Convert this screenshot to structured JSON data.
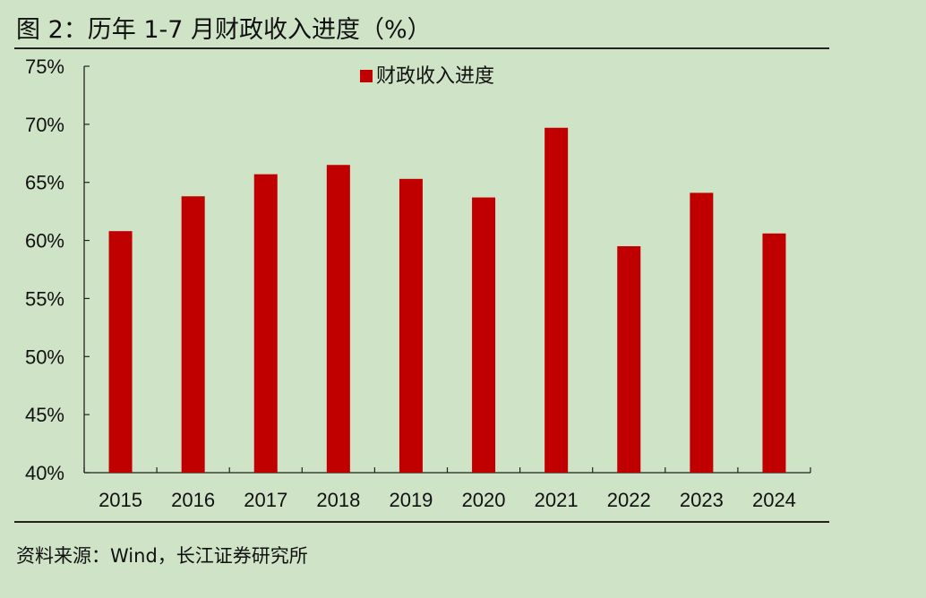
{
  "title": "图 2：历年 1-7 月财政收入进度（%）",
  "source": "资料来源：Wind，长江证券研究所",
  "colors": {
    "background": "#cfe3c6",
    "bar": "#c00000"
  },
  "chart_data": {
    "type": "bar",
    "categories": [
      "2015",
      "2016",
      "2017",
      "2018",
      "2019",
      "2020",
      "2021",
      "2022",
      "2023",
      "2024"
    ],
    "series": [
      {
        "name": "财政收入进度",
        "values": [
          60.8,
          63.8,
          65.7,
          66.5,
          65.3,
          63.7,
          69.7,
          59.5,
          64.1,
          60.6
        ]
      }
    ],
    "ylim": [
      40,
      75
    ],
    "yticks": [
      "40%",
      "45%",
      "50%",
      "55%",
      "60%",
      "65%",
      "70%",
      "75%"
    ],
    "ytick_values": [
      40,
      45,
      50,
      55,
      60,
      65,
      70,
      75
    ],
    "legend": "top-center",
    "grid": false
  }
}
